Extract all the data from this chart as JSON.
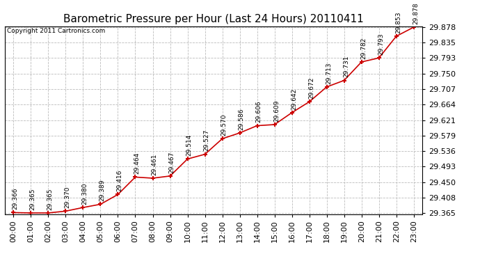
{
  "title": "Barometric Pressure per Hour (Last 24 Hours) 20110411",
  "copyright": "Copyright 2011 Cartronics.com",
  "hours": [
    "00:00",
    "01:00",
    "02:00",
    "03:00",
    "04:00",
    "05:00",
    "06:00",
    "07:00",
    "08:00",
    "09:00",
    "10:00",
    "11:00",
    "12:00",
    "13:00",
    "14:00",
    "15:00",
    "16:00",
    "17:00",
    "18:00",
    "19:00",
    "20:00",
    "21:00",
    "22:00",
    "23:00"
  ],
  "values": [
    29.366,
    29.365,
    29.365,
    29.37,
    29.38,
    29.389,
    29.416,
    29.464,
    29.461,
    29.467,
    29.514,
    29.527,
    29.57,
    29.586,
    29.606,
    29.609,
    29.642,
    29.672,
    29.713,
    29.731,
    29.782,
    29.793,
    29.853,
    29.878
  ],
  "ylim_min": 29.365,
  "ylim_max": 29.878,
  "yticks": [
    29.365,
    29.408,
    29.45,
    29.493,
    29.536,
    29.579,
    29.621,
    29.664,
    29.707,
    29.75,
    29.793,
    29.835,
    29.878
  ],
  "line_color": "#cc0000",
  "marker": "+",
  "marker_color": "#cc0000",
  "bg_color": "#ffffff",
  "plot_bg_color": "#ffffff",
  "grid_color": "#bbbbbb",
  "title_fontsize": 11,
  "label_fontsize": 8,
  "annotation_fontsize": 6.5,
  "copyright_fontsize": 6.5
}
